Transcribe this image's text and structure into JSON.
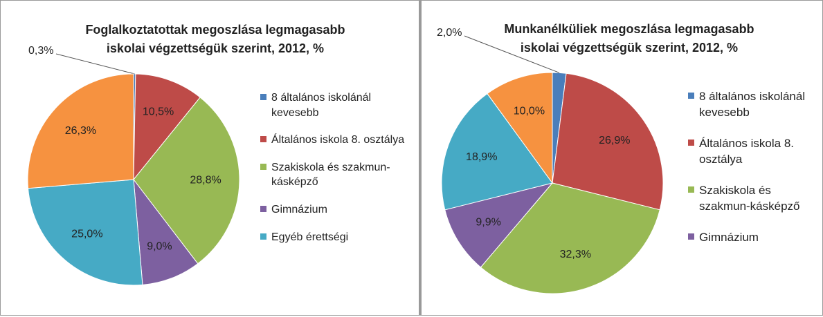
{
  "chart_data": [
    {
      "type": "pie",
      "title": [
        "Foglalkoztatottak megoszlása legmagasabb",
        "iskolai végzettségük szerint, 2012, %"
      ],
      "categories": [
        "8 általános iskolánál kevesebb",
        "Általános iskola 8. osztálya",
        "Szakiskola és szakmun-kásképző",
        "Gimnázium",
        "Egyéb érettségi",
        null
      ],
      "values": [
        0.3,
        10.5,
        28.8,
        9.0,
        25.0,
        26.3
      ],
      "value_labels": [
        "0,3%",
        "10,5%",
        "28,8%",
        "9,0%",
        "25,0%",
        "26,3%"
      ],
      "colors": [
        "#4a7ebb",
        "#be4b48",
        "#98b954",
        "#7d60a0",
        "#46aac5",
        "#f69240"
      ]
    },
    {
      "type": "pie",
      "title": [
        "Munkanélküliek megoszlása legmagasabb",
        "iskolai végzettségük szerint, 2012, %"
      ],
      "categories": [
        "8 általános iskolánál kevesebb",
        "Általános iskola 8. osztálya",
        "Szakiskola és szakmun-kásképző",
        "Gimnázium",
        null,
        null
      ],
      "values": [
        2.0,
        26.9,
        32.3,
        9.9,
        18.9,
        10.0
      ],
      "value_labels": [
        "2,0%",
        "26,9%",
        "32,3%",
        "9,9%",
        "18,9%",
        "10,0%"
      ],
      "colors": [
        "#4a7ebb",
        "#be4b48",
        "#98b954",
        "#7d60a0",
        "#46aac5",
        "#f69240"
      ]
    }
  ]
}
